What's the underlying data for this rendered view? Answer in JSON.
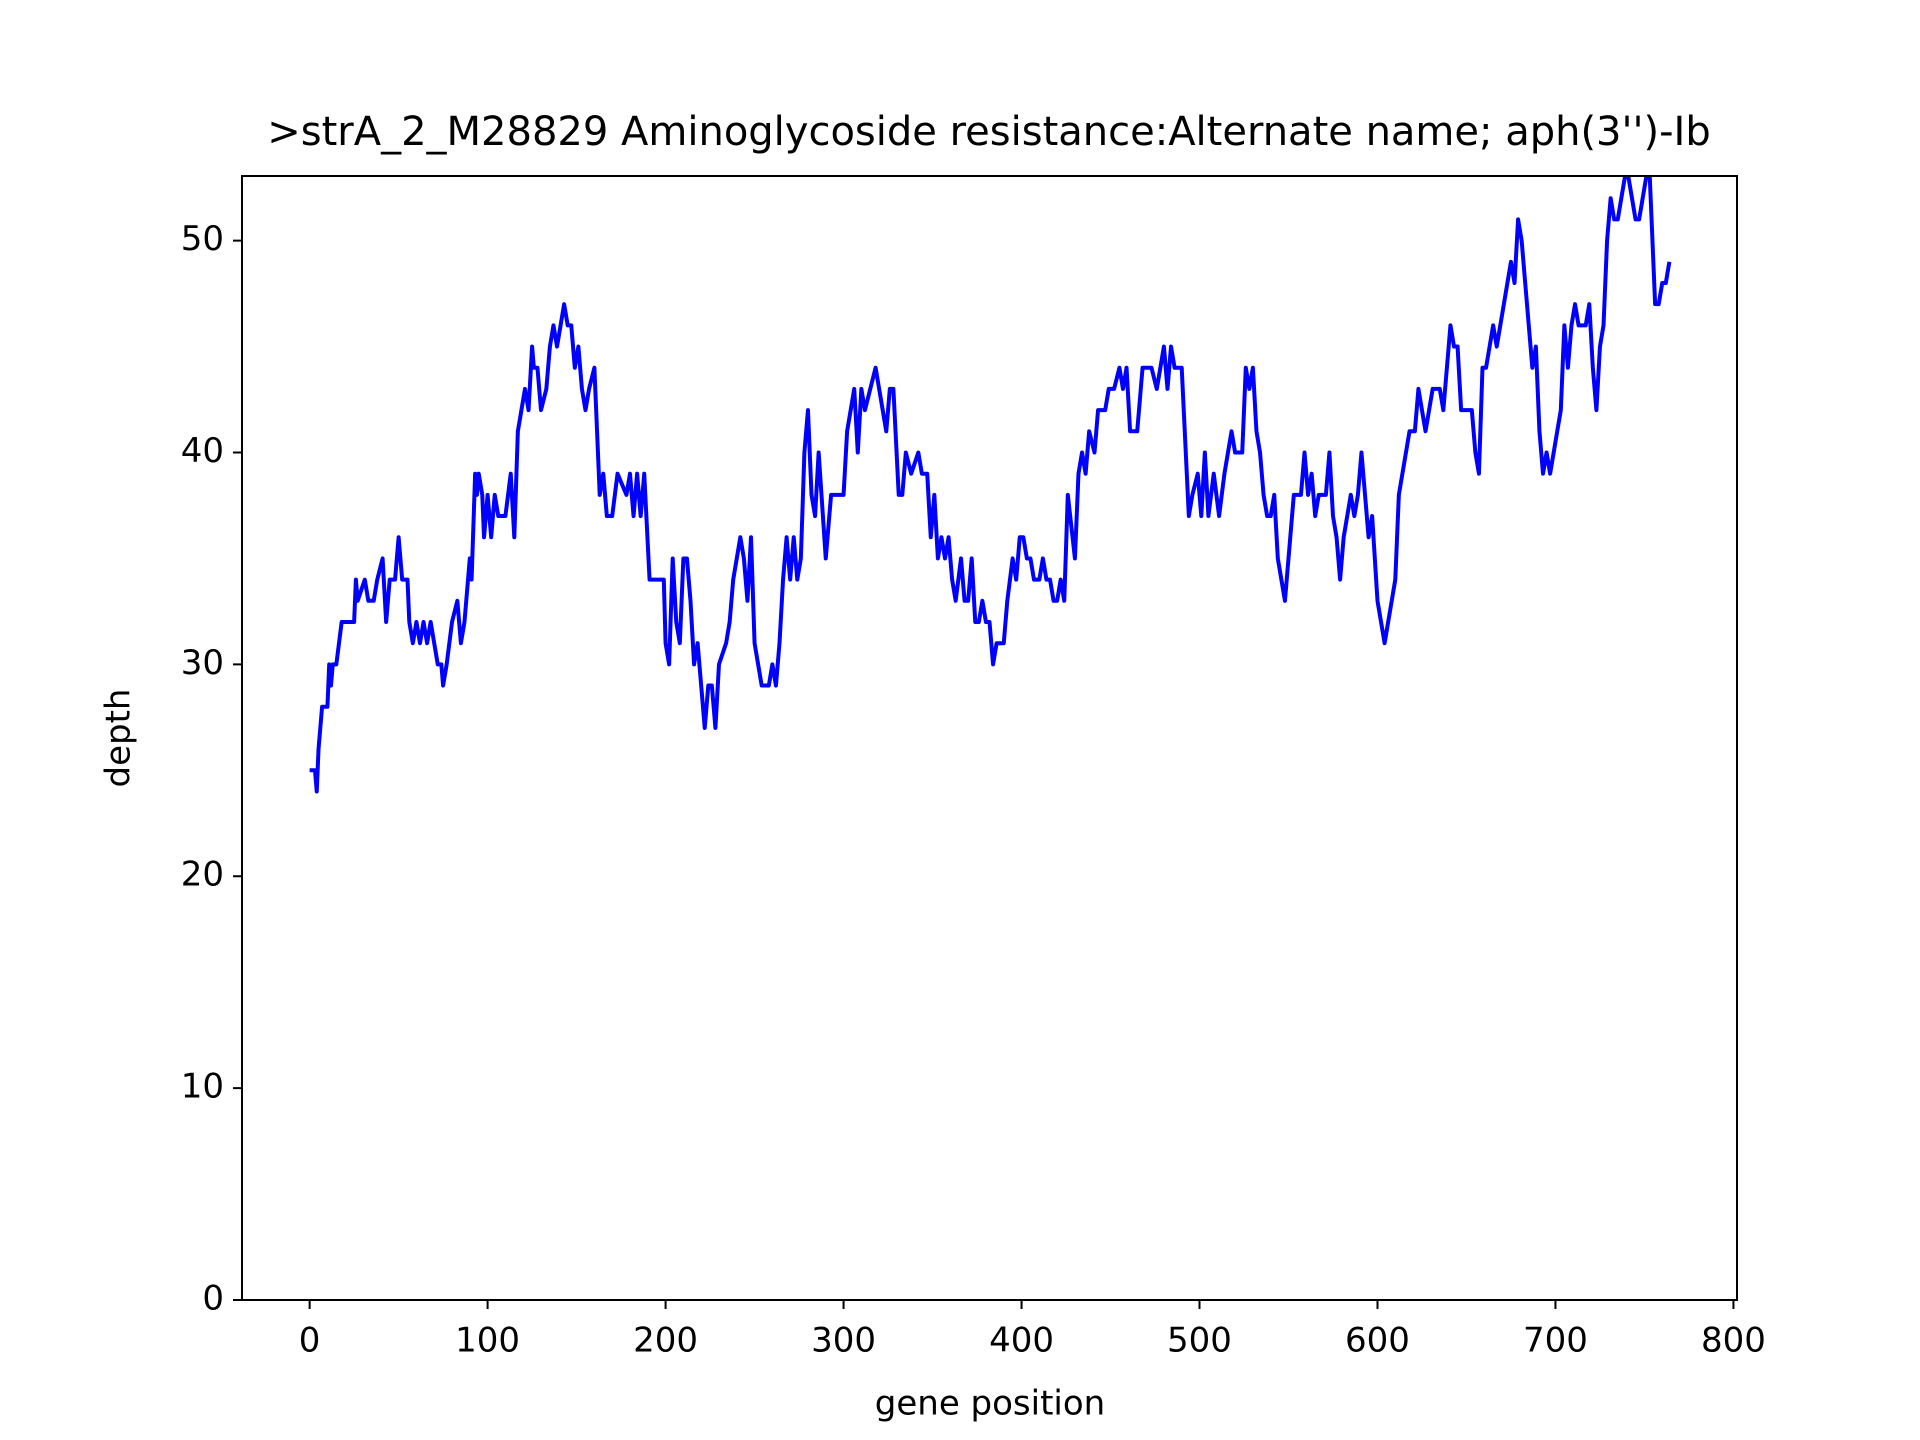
{
  "chart_data": {
    "type": "line",
    "title": ">strA_2_M28829 Aminoglycoside resistance:Alternate name; aph(3'')-Ib",
    "x_label": "gene position",
    "y_label": "depth",
    "color": "#0000ff",
    "xlim": [
      -38,
      802
    ],
    "ylim": [
      0,
      53.05
    ],
    "xticks": [
      0,
      100,
      200,
      300,
      400,
      500,
      600,
      700,
      800
    ],
    "yticks": [
      0,
      10,
      20,
      30,
      40,
      50
    ],
    "x": [
      0,
      3,
      4,
      5,
      7,
      10,
      11,
      12,
      13,
      15,
      18,
      25,
      26,
      27,
      31,
      33,
      36,
      38,
      41,
      43,
      45,
      48,
      50,
      52,
      55,
      56,
      58,
      60,
      62,
      64,
      66,
      68,
      70,
      72,
      74,
      75,
      77,
      80,
      83,
      85,
      87,
      89,
      90,
      91,
      93,
      94,
      95,
      97,
      98,
      100,
      102,
      104,
      106,
      110,
      113,
      115,
      117,
      119,
      121,
      123,
      125,
      126,
      128,
      130,
      133,
      135,
      137,
      139,
      141,
      143,
      145,
      147,
      149,
      151,
      153,
      155,
      157,
      160,
      163,
      165,
      167,
      170,
      173,
      178,
      180,
      182,
      184,
      186,
      188,
      191,
      195,
      199,
      200,
      202,
      204,
      206,
      208,
      210,
      212,
      214,
      216,
      218,
      220,
      222,
      224,
      226,
      228,
      230,
      234,
      236,
      238,
      240,
      242,
      244,
      246,
      248,
      250,
      252,
      254,
      258,
      260,
      262,
      264,
      266,
      268,
      270,
      272,
      274,
      276,
      278,
      280,
      282,
      284,
      286,
      290,
      293,
      300,
      302,
      304,
      306,
      308,
      310,
      312,
      315,
      318,
      322,
      324,
      326,
      328,
      331,
      333,
      335,
      338,
      342,
      344,
      347,
      349,
      351,
      353,
      355,
      357,
      359,
      361,
      363,
      366,
      368,
      370,
      372,
      374,
      376,
      378,
      380,
      382,
      384,
      386,
      390,
      392,
      395,
      397,
      399,
      401,
      403,
      405,
      407,
      410,
      412,
      414,
      416,
      418,
      420,
      422,
      424,
      426,
      430,
      432,
      434,
      436,
      438,
      441,
      443,
      447,
      449,
      452,
      455,
      457,
      459,
      461,
      465,
      468,
      473,
      476,
      480,
      482,
      484,
      486,
      490,
      494,
      496,
      499,
      501,
      503,
      505,
      508,
      511,
      514,
      518,
      520,
      524,
      526,
      528,
      530,
      532,
      534,
      536,
      538,
      540,
      542,
      544,
      546,
      548,
      550,
      553,
      557,
      559,
      561,
      563,
      565,
      567,
      571,
      573,
      575,
      577,
      579,
      581,
      583,
      585,
      587,
      589,
      591,
      593,
      595,
      597,
      600,
      602,
      604,
      606,
      608,
      610,
      612,
      614,
      616,
      618,
      621,
      623,
      625,
      627,
      629,
      631,
      635,
      637,
      639,
      641,
      643,
      645,
      647,
      650,
      653,
      655,
      657,
      659,
      661,
      663,
      665,
      667,
      669,
      671,
      673,
      675,
      677,
      679,
      681,
      683,
      685,
      687,
      689,
      691,
      693,
      695,
      697,
      699,
      701,
      703,
      705,
      707,
      709,
      711,
      713,
      717,
      719,
      721,
      723,
      725,
      727,
      729,
      731,
      733,
      735,
      737,
      739,
      741,
      743,
      745,
      747,
      749,
      751,
      753,
      756,
      758,
      760,
      762,
      764
    ],
    "values": [
      25,
      25,
      24,
      26,
      28,
      28,
      30,
      29,
      30,
      30,
      32,
      32,
      34,
      33,
      34,
      33,
      33,
      34,
      35,
      32,
      34,
      34,
      36,
      34,
      34,
      32,
      31,
      32,
      31,
      32,
      31,
      32,
      31,
      30,
      30,
      29,
      30,
      32,
      33,
      31,
      32,
      34,
      35,
      34,
      39,
      38,
      39,
      38,
      36,
      38,
      36,
      38,
      37,
      37,
      39,
      36,
      41,
      42,
      43,
      42,
      45,
      44,
      44,
      42,
      43,
      45,
      46,
      45,
      46,
      47,
      46,
      46,
      44,
      45,
      43,
      42,
      43,
      44,
      38,
      39,
      37,
      37,
      39,
      38,
      39,
      37,
      39,
      37,
      39,
      34,
      34,
      34,
      31,
      30,
      35,
      32,
      31,
      35,
      35,
      33,
      30,
      31,
      29,
      27,
      29,
      29,
      27,
      30,
      31,
      32,
      34,
      35,
      36,
      35,
      33,
      36,
      31,
      30,
      29,
      29,
      30,
      29,
      31,
      34,
      36,
      34,
      36,
      34,
      35,
      40,
      42,
      38,
      37,
      40,
      35,
      38,
      38,
      41,
      42,
      43,
      40,
      43,
      42,
      43,
      44,
      42,
      41,
      43,
      43,
      38,
      38,
      40,
      39,
      40,
      39,
      39,
      36,
      38,
      35,
      36,
      35,
      36,
      34,
      33,
      35,
      33,
      33,
      35,
      32,
      32,
      33,
      32,
      32,
      30,
      31,
      31,
      33,
      35,
      34,
      36,
      36,
      35,
      35,
      34,
      34,
      35,
      34,
      34,
      33,
      33,
      34,
      33,
      38,
      35,
      39,
      40,
      39,
      41,
      40,
      42,
      42,
      43,
      43,
      44,
      43,
      44,
      41,
      41,
      44,
      44,
      43,
      45,
      43,
      45,
      44,
      44,
      37,
      38,
      39,
      37,
      40,
      37,
      39,
      37,
      39,
      41,
      40,
      40,
      44,
      43,
      44,
      41,
      40,
      38,
      37,
      37,
      38,
      35,
      34,
      33,
      35,
      38,
      38,
      40,
      38,
      39,
      37,
      38,
      38,
      40,
      37,
      36,
      34,
      36,
      37,
      38,
      37,
      38,
      40,
      38,
      36,
      37,
      33,
      32,
      31,
      32,
      33,
      34,
      38,
      39,
      40,
      41,
      41,
      43,
      42,
      41,
      42,
      43,
      43,
      42,
      44,
      46,
      45,
      45,
      42,
      42,
      42,
      40,
      39,
      44,
      44,
      45,
      46,
      45,
      46,
      47,
      48,
      49,
      48,
      51,
      50,
      48,
      46,
      44,
      45,
      41,
      39,
      40,
      39,
      40,
      41,
      42,
      46,
      44,
      46,
      47,
      46,
      46,
      47,
      44,
      42,
      45,
      46,
      50,
      52,
      51,
      51,
      52,
      53,
      53,
      52,
      51,
      51,
      52,
      53,
      53,
      47,
      47,
      48,
      48,
      49
    ]
  }
}
